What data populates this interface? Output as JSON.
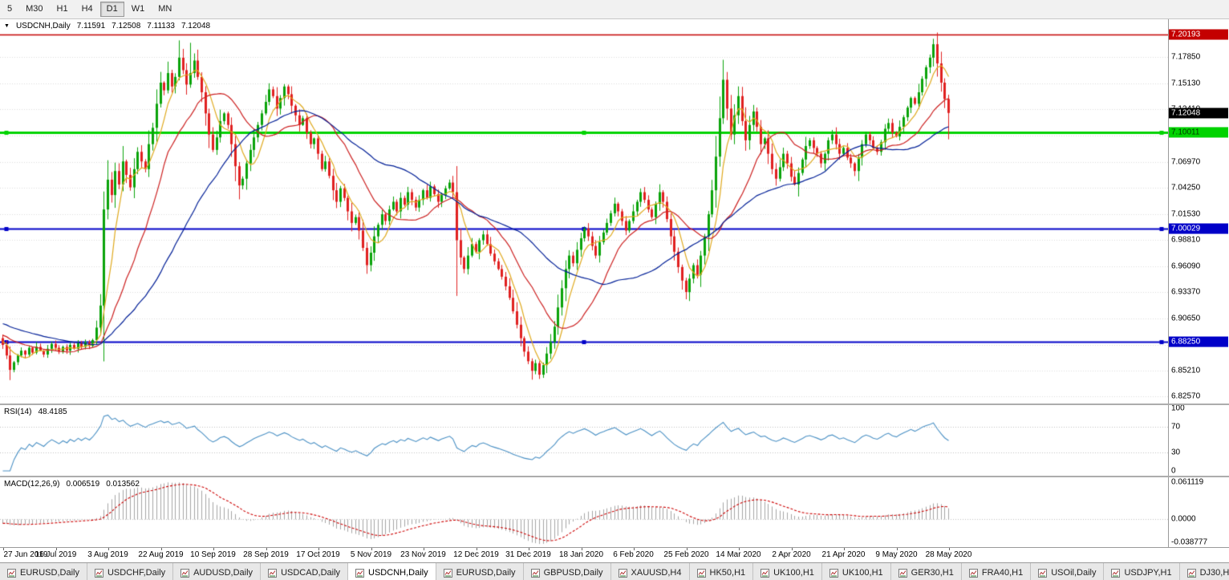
{
  "toolbar": {
    "timeframes": [
      {
        "label": "5",
        "active": false
      },
      {
        "label": "M30",
        "active": false
      },
      {
        "label": "H1",
        "active": false
      },
      {
        "label": "H4",
        "active": false
      },
      {
        "label": "D1",
        "active": true
      },
      {
        "label": "W1",
        "active": false
      },
      {
        "label": "MN",
        "active": false
      }
    ]
  },
  "chart": {
    "title": {
      "symbol": "USDCNH,Daily",
      "open": "7.11591",
      "high": "7.12508",
      "low": "7.11133",
      "close": "7.12048"
    },
    "price_axis_labels": [
      "7.17850",
      "7.15130",
      "7.12410",
      "7.09690",
      "7.06970",
      "7.04250",
      "7.01530",
      "6.98810",
      "6.96090",
      "6.93370",
      "6.90650",
      "6.87930",
      "6.85210",
      "6.82570"
    ],
    "price_boxes": [
      {
        "label": "7.20193",
        "value": 7.20193,
        "bg": "#C40000",
        "fg": "#FFFFFF"
      },
      {
        "label": "7.12048",
        "value": 7.12048,
        "bg": "#000000",
        "fg": "#FFFFFF"
      },
      {
        "label": "7.10011",
        "value": 7.10011,
        "bg": "#00D300",
        "fg": "#003300"
      },
      {
        "label": "7.00029",
        "value": 7.00029,
        "bg": "#0000C8",
        "fg": "#FFFFFF"
      },
      {
        "label": "6.88250",
        "value": 6.8825,
        "bg": "#0000C8",
        "fg": "#FFFFFF"
      }
    ],
    "hlines": [
      {
        "value": 7.20193,
        "color": "#C40000",
        "width": 1.5,
        "handles": false
      },
      {
        "value": 7.10011,
        "color": "#00D300",
        "width": 3,
        "handles": true
      },
      {
        "value": 7.00029,
        "color": "#0000C8",
        "width": 2,
        "handles": true
      },
      {
        "value": 6.8825,
        "color": "#0000C8",
        "width": 2,
        "handles": true
      }
    ],
    "y_range": [
      6.818,
      7.218
    ]
  },
  "rsi": {
    "label": "RSI(14)",
    "value": "48.4185",
    "period": 14,
    "color": "#4A90C4",
    "axis_labels": [
      {
        "label": "100",
        "value": 100
      },
      {
        "label": "70",
        "value": 70
      },
      {
        "label": "30",
        "value": 30
      },
      {
        "label": "0",
        "value": 0
      }
    ],
    "levels": [
      70,
      30
    ]
  },
  "macd": {
    "label": "MACD(12,26,9)",
    "value_macd": "0.006519",
    "value_signal": "0.013562",
    "fast": 12,
    "slow": 26,
    "signal": 9,
    "axis_labels": [
      {
        "label": "0.061119",
        "value": 0.061119
      },
      {
        "label": "0.0000",
        "value": 0
      },
      {
        "label": "-0.038777",
        "value": -0.038777
      }
    ],
    "colors": {
      "hist": "#A4A4A4",
      "signal": "#CC0000"
    }
  },
  "tabs": [
    {
      "label": "EURUSD,Daily",
      "active": false
    },
    {
      "label": "USDCHF,Daily",
      "active": false
    },
    {
      "label": "AUDUSD,Daily",
      "active": false
    },
    {
      "label": "USDCAD,Daily",
      "active": false
    },
    {
      "label": "USDCNH,Daily",
      "active": true
    },
    {
      "label": "EURUSD,Daily",
      "active": false
    },
    {
      "label": "GBPUSD,Daily",
      "active": false
    },
    {
      "label": "XAUUSD,H4",
      "active": false
    },
    {
      "label": "HK50,H1",
      "active": false
    },
    {
      "label": "UK100,H1",
      "active": false
    },
    {
      "label": "UK100,H1",
      "active": false
    },
    {
      "label": "GER30,H1",
      "active": false
    },
    {
      "label": "FRA40,H1",
      "active": false
    },
    {
      "label": "USOil,Daily",
      "active": false
    },
    {
      "label": "USDJPY,H1",
      "active": false
    },
    {
      "label": "DJ30,H1",
      "active": false
    }
  ],
  "chart_data": {
    "type": "candlestick",
    "symbol": "USDCNH",
    "timeframe": "Daily",
    "title": "USDCNH,Daily",
    "ylim": [
      6.818,
      7.218
    ],
    "x_labels": [
      "27 Jun 2019",
      "16 Jul 2019",
      "3 Aug 2019",
      "22 Aug 2019",
      "10 Sep 2019",
      "28 Sep 2019",
      "17 Oct 2019",
      "5 Nov 2019",
      "23 Nov 2019",
      "12 Dec 2019",
      "31 Dec 2019",
      "18 Jan 2020",
      "6 Feb 2020",
      "25 Feb 2020",
      "14 Mar 2020",
      "2 Apr 2020",
      "21 Apr 2020",
      "9 May 2020",
      "28 May 2020"
    ],
    "closes": [
      6.879,
      6.868,
      6.853,
      6.861,
      6.868,
      6.873,
      6.869,
      6.876,
      6.871,
      6.877,
      6.873,
      6.869,
      6.875,
      6.88,
      6.876,
      6.872,
      6.877,
      6.873,
      6.879,
      6.875,
      6.881,
      6.877,
      6.882,
      6.878,
      6.884,
      6.897,
      6.92,
      7.02,
      7.051,
      7.035,
      7.06,
      7.046,
      7.07,
      7.056,
      7.043,
      7.062,
      7.08,
      7.07,
      7.062,
      7.088,
      7.105,
      7.13,
      7.152,
      7.144,
      7.162,
      7.148,
      7.158,
      7.178,
      7.165,
      7.15,
      7.162,
      7.175,
      7.158,
      7.142,
      7.12,
      7.098,
      7.082,
      7.095,
      7.112,
      7.12,
      7.108,
      7.088,
      7.065,
      7.045,
      7.052,
      7.068,
      7.082,
      7.095,
      7.108,
      7.12,
      7.132,
      7.145,
      7.138,
      7.125,
      7.136,
      7.148,
      7.14,
      7.128,
      7.118,
      7.108,
      7.115,
      7.1,
      7.088,
      7.094,
      7.078,
      7.062,
      7.07,
      7.055,
      7.04,
      7.028,
      7.042,
      7.032,
      7.018,
      7.006,
      7.012,
      6.998,
      6.98,
      6.962,
      6.975,
      6.992,
      7.004,
      7.015,
      7.008,
      7.02,
      7.028,
      7.018,
      7.032,
      7.025,
      7.038,
      7.03,
      7.022,
      7.03,
      7.04,
      7.032,
      7.044,
      7.036,
      7.028,
      7.035,
      7.042,
      7.048,
      7.038,
      6.988,
      6.97,
      6.958,
      6.972,
      6.984,
      6.976,
      6.988,
      6.994,
      6.984,
      6.974,
      6.966,
      6.958,
      6.95,
      6.94,
      6.928,
      6.914,
      6.9,
      6.886,
      6.872,
      6.862,
      6.852,
      6.86,
      6.848,
      6.858,
      6.87,
      6.882,
      6.898,
      6.918,
      6.938,
      6.958,
      6.972,
      6.964,
      6.978,
      6.99,
      7.0,
      6.992,
      6.982,
      6.972,
      6.986,
      6.996,
      7.006,
      7.016,
      7.026,
      7.018,
      7.008,
      6.998,
      7.008,
      7.018,
      7.028,
      7.038,
      7.03,
      7.02,
      7.012,
      7.026,
      7.038,
      7.028,
      7.01,
      6.992,
      6.976,
      6.96,
      6.946,
      6.934,
      6.948,
      6.962,
      6.952,
      6.972,
      6.992,
      7.015,
      7.04,
      7.075,
      7.115,
      7.155,
      7.125,
      7.098,
      7.118,
      7.138,
      7.112,
      7.092,
      7.108,
      7.122,
      7.106,
      7.088,
      7.094,
      7.078,
      7.062,
      7.052,
      7.064,
      7.078,
      7.068,
      7.054,
      7.046,
      7.058,
      7.072,
      7.086,
      7.092,
      7.084,
      7.078,
      7.068,
      7.078,
      7.092,
      7.098,
      7.088,
      7.078,
      7.084,
      7.074,
      7.068,
      7.06,
      7.074,
      7.088,
      7.098,
      7.092,
      7.084,
      7.08,
      7.09,
      7.104,
      7.11,
      7.1,
      7.096,
      7.106,
      7.116,
      7.126,
      7.136,
      7.13,
      7.142,
      7.156,
      7.168,
      7.178,
      7.192,
      7.172,
      7.152,
      7.135,
      7.12048
    ],
    "spikes": [
      {
        "i": 2,
        "low": 6.845
      },
      {
        "i": 27,
        "low": 6.915
      },
      {
        "i": 41,
        "high": 7.145
      },
      {
        "i": 47,
        "high": 7.196
      },
      {
        "i": 50,
        "high": 7.1935
      },
      {
        "i": 63,
        "low": 7.032
      },
      {
        "i": 97,
        "low": 6.953
      },
      {
        "i": 121,
        "low": 6.93,
        "high": 7.049
      },
      {
        "i": 141,
        "low": 6.8428
      },
      {
        "i": 143,
        "low": 6.846
      },
      {
        "i": 182,
        "low": 6.9268
      },
      {
        "i": 192,
        "high": 7.1758
      },
      {
        "i": 212,
        "low": 7.0335
      },
      {
        "i": 248,
        "high": 7.1965
      },
      {
        "i": 252,
        "low": 7.093
      }
    ],
    "last_ohlc": {
      "open": 7.11591,
      "high": 7.12508,
      "low": 7.11133,
      "close": 7.12048
    },
    "overlays": [
      {
        "name": "ma-fast",
        "type": "sma",
        "period": 6,
        "color": "#DFA91E"
      },
      {
        "name": "ma-mid",
        "type": "sma",
        "period": 18,
        "color": "#CC2020"
      },
      {
        "name": "ma-slow",
        "type": "sma",
        "period": 40,
        "color": "#001E96"
      }
    ],
    "colors": {
      "up": "#09A309",
      "down": "#E02020",
      "grid": "#DBDBDB"
    }
  }
}
